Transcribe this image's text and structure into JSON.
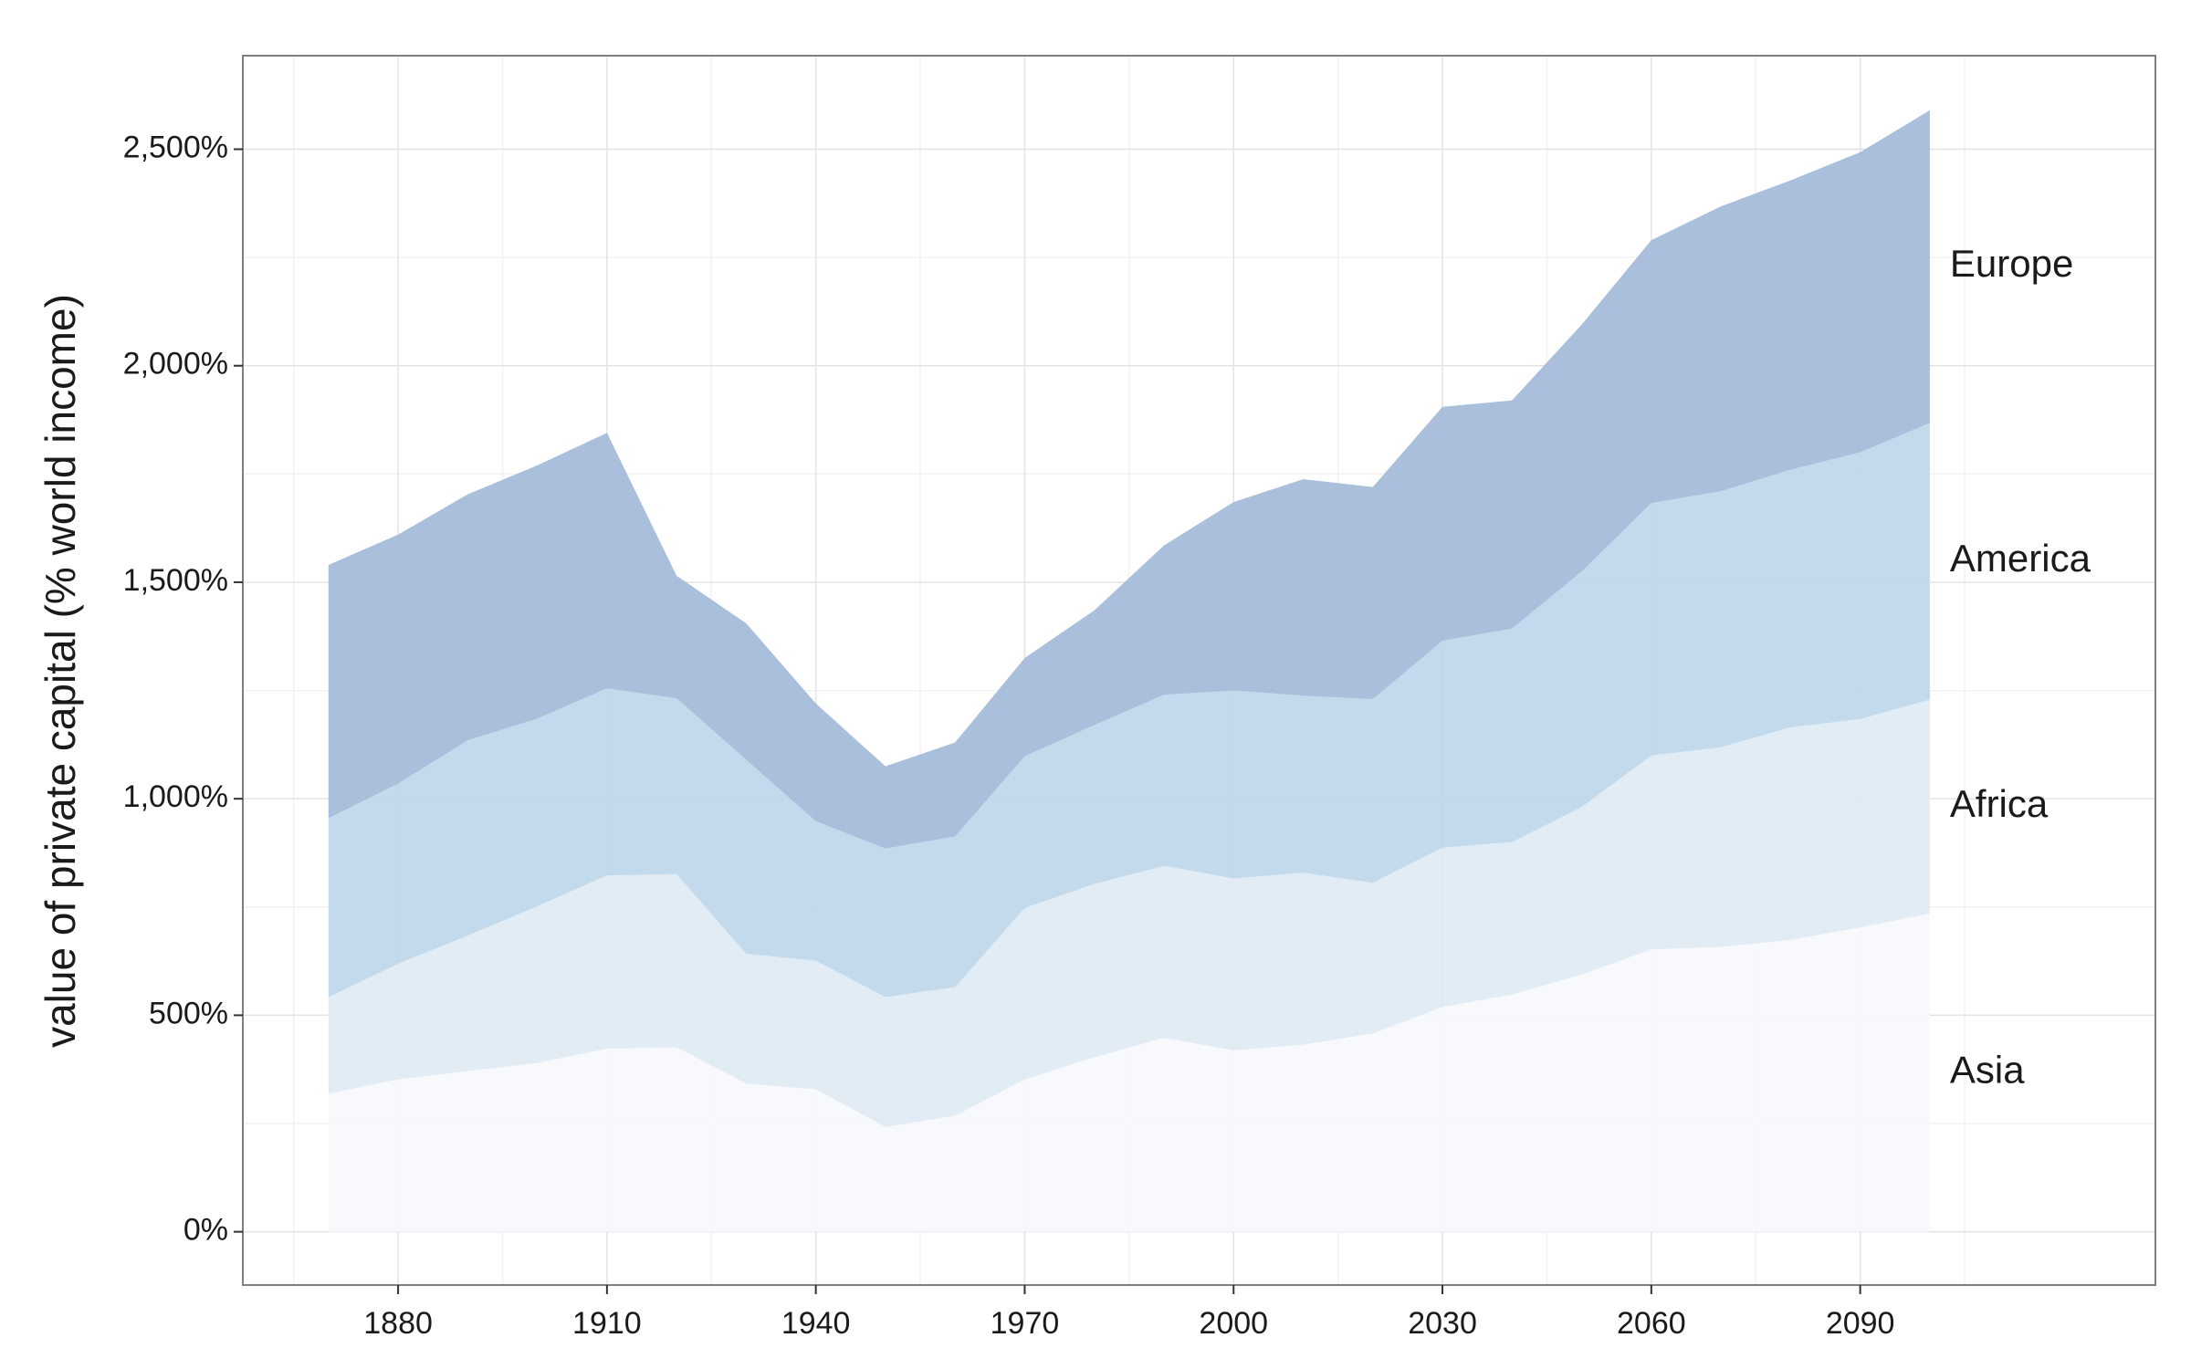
{
  "chart_data": {
    "type": "stacked_area",
    "y_axis_label": "value of private capital (% world income)",
    "x": [
      1870,
      1880,
      1890,
      1900,
      1910,
      1920,
      1930,
      1940,
      1950,
      1960,
      1970,
      1980,
      1990,
      2000,
      2010,
      2020,
      2030,
      2040,
      2050,
      2060,
      2070,
      2080,
      2090,
      2100
    ],
    "series": [
      {
        "name": "Asia",
        "color": "#f6f8fc",
        "values": [
          319,
          352,
          371,
          390,
          423,
          426,
          342,
          329,
          242,
          268,
          352,
          403,
          448,
          419,
          432,
          458,
          519,
          548,
          594,
          652,
          658,
          674,
          703,
          735
        ]
      },
      {
        "name": "Africa",
        "color": "#deeaf3",
        "values": [
          223,
          267,
          313,
          362,
          400,
          400,
          300,
          297,
          300,
          297,
          396,
          400,
          397,
          397,
          397,
          348,
          368,
          352,
          387,
          448,
          461,
          491,
          481,
          494
        ]
      },
      {
        "name": "America",
        "color": "#bdd7ea",
        "values": [
          413,
          416,
          451,
          433,
          432,
          406,
          448,
          322,
          343,
          348,
          350,
          367,
          395,
          434,
          409,
          424,
          478,
          493,
          544,
          583,
          591,
          595,
          616,
          639
        ]
      },
      {
        "name": "Europe",
        "color": "#a3bad9",
        "values": [
          585,
          575,
          568,
          585,
          590,
          283,
          315,
          272,
          190,
          217,
          227,
          265,
          345,
          435,
          500,
          490,
          540,
          527,
          570,
          607,
          658,
          668,
          693,
          722
        ]
      }
    ],
    "xlim": [
      1857.7,
      2132.4
    ],
    "ylim": [
      -123,
      2716
    ],
    "xticks": [
      1880,
      1910,
      1940,
      1970,
      2000,
      2030,
      2060,
      2090
    ],
    "x_minor_ticks": [
      1865,
      1895,
      1925,
      1955,
      1985,
      2015,
      2045,
      2075,
      2105
    ],
    "yticks": [
      {
        "value": 0,
        "label": "0%"
      },
      {
        "value": 500,
        "label": "500%"
      },
      {
        "value": 1000,
        "label": "1,000%"
      },
      {
        "value": 1500,
        "label": "1,500%"
      },
      {
        "value": 2000,
        "label": "2,000%"
      },
      {
        "value": 2500,
        "label": "2,500%"
      }
    ],
    "y_minor_ticks": [
      250,
      750,
      1250,
      1750,
      2250
    ],
    "grid": true
  }
}
